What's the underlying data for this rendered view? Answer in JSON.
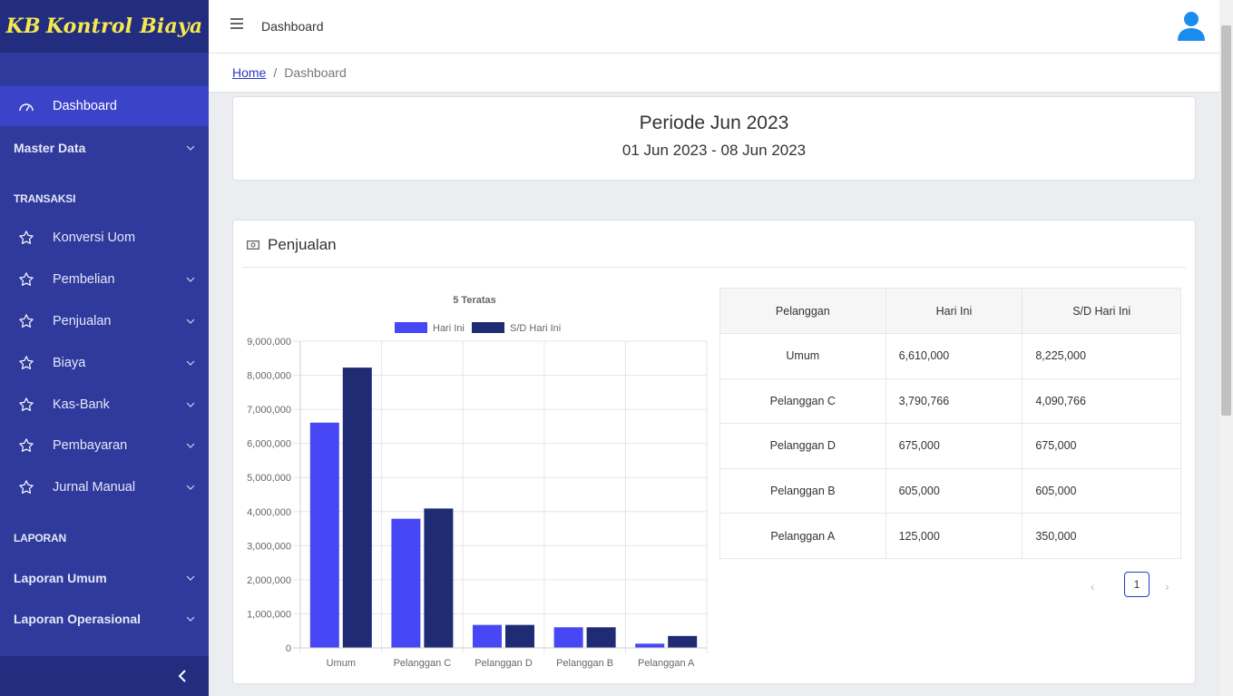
{
  "brand": {
    "name": "Kontrol Biaya",
    "mark": "KB"
  },
  "sidebar": {
    "dashboard": "Dashboard",
    "master_data": "Master Data",
    "transaksi_header": "TRANSAKSI",
    "transaksi_items": [
      "Konversi Uom",
      "Pembelian",
      "Penjualan",
      "Biaya",
      "Kas-Bank",
      "Pembayaran",
      "Jurnal Manual"
    ],
    "laporan_header": "LAPORAN",
    "laporan_umum": "Laporan Umum",
    "laporan_operasional": "Laporan Operasional"
  },
  "topbar": {
    "title": "Dashboard"
  },
  "breadcrumb": {
    "home": "Home",
    "sep": "/",
    "current": "Dashboard"
  },
  "period": {
    "title": "Periode Jun 2023",
    "range": "01 Jun 2023 - 08 Jun 2023"
  },
  "sales": {
    "title": "Penjualan"
  },
  "table": {
    "headers": [
      "Pelanggan",
      "Hari Ini",
      "S/D Hari Ini"
    ],
    "rows": [
      [
        "Umum",
        "6,610,000",
        "8,225,000"
      ],
      [
        "Pelanggan C",
        "3,790,766",
        "4,090,766"
      ],
      [
        "Pelanggan D",
        "675,000",
        "675,000"
      ],
      [
        "Pelanggan B",
        "605,000",
        "605,000"
      ],
      [
        "Pelanggan A",
        "125,000",
        "350,000"
      ]
    ]
  },
  "pagination": {
    "current": "1"
  },
  "colors": {
    "sidebar": "#2f3a9c",
    "series1": "#4747f5",
    "series2": "#1f2b73",
    "brand_text": "#f6e94d"
  },
  "chart_data": {
    "type": "bar",
    "title": "5 Teratas",
    "categories": [
      "Umum",
      "Pelanggan C",
      "Pelanggan D",
      "Pelanggan B",
      "Pelanggan A"
    ],
    "series": [
      {
        "name": "Hari Ini",
        "values": [
          6610000,
          3790766,
          675000,
          605000,
          125000
        ]
      },
      {
        "name": "S/D Hari Ini",
        "values": [
          8225000,
          4090766,
          675000,
          605000,
          350000
        ]
      }
    ],
    "yticks": [
      "0",
      "1,000,000",
      "2,000,000",
      "3,000,000",
      "4,000,000",
      "5,000,000",
      "6,000,000",
      "7,000,000",
      "8,000,000",
      "9,000,000"
    ],
    "ylim": [
      0,
      9000000
    ],
    "legend": "top",
    "grid": true
  }
}
